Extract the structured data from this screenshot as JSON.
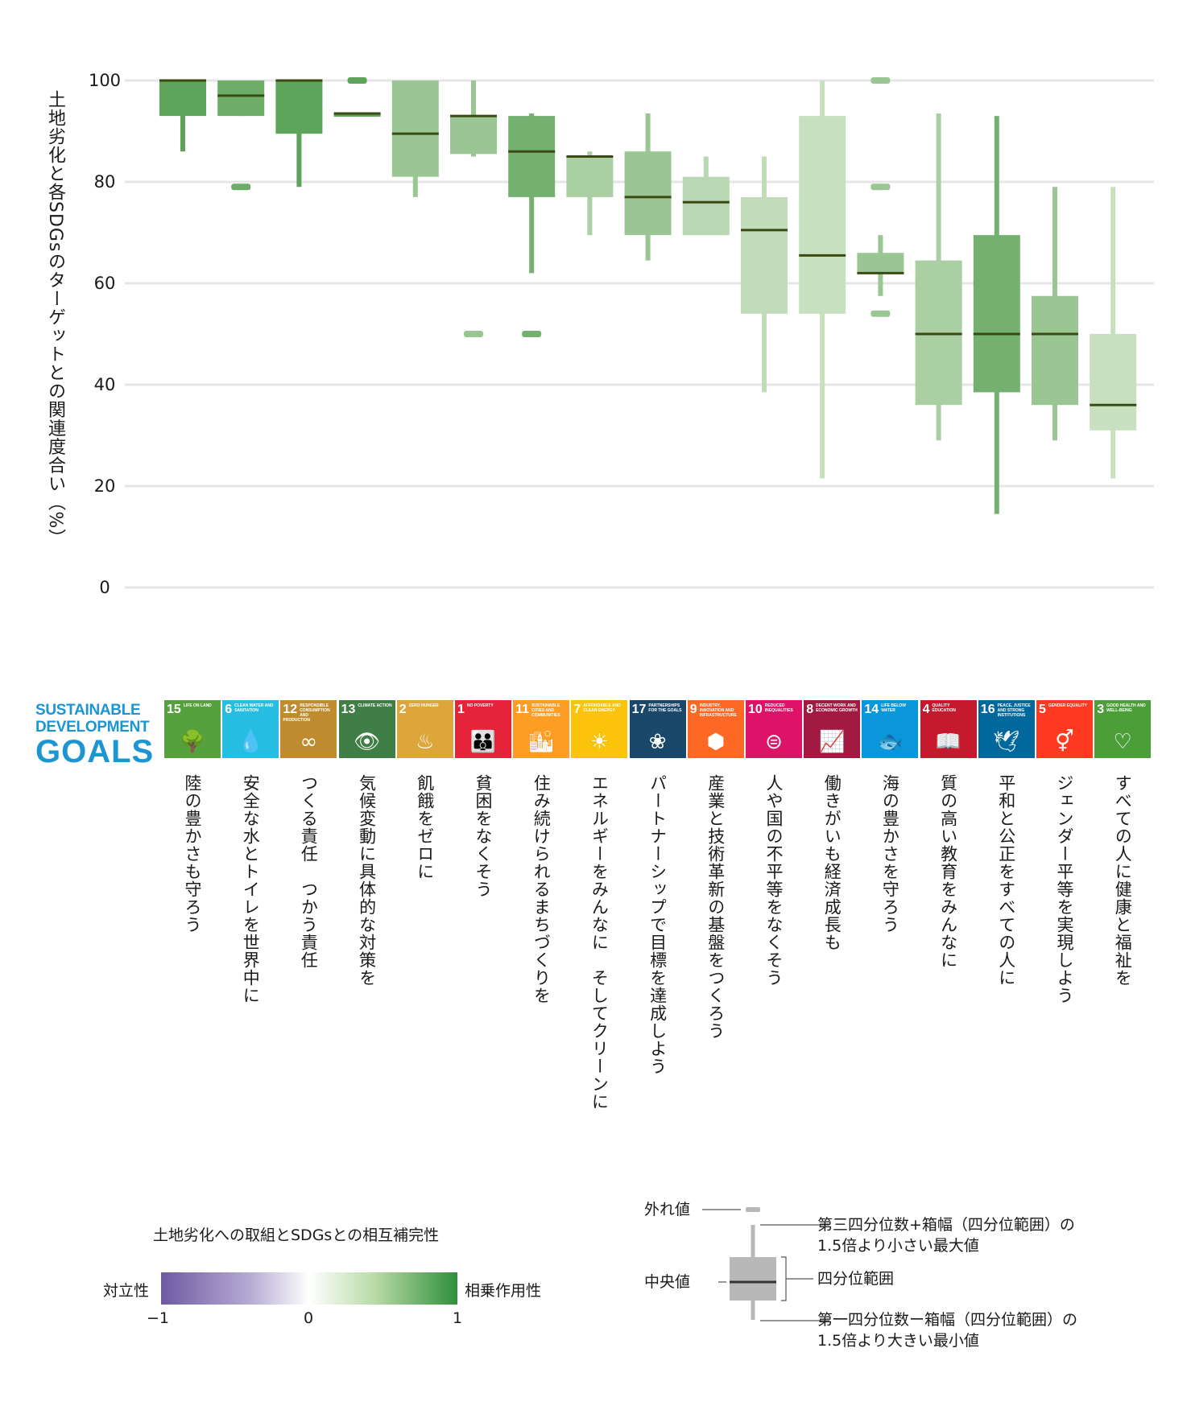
{
  "chart_data": {
    "type": "boxplot",
    "ylabel": "土地劣化と各SDGsのターゲットとの関連度合い（%）",
    "ylim": [
      0,
      100
    ],
    "yticks": [
      0,
      20,
      40,
      60,
      80,
      100
    ],
    "categories": [
      "15",
      "6",
      "12",
      "13",
      "2",
      "1",
      "11",
      "7",
      "17",
      "9",
      "10",
      "8",
      "14",
      "4",
      "16",
      "5",
      "3"
    ],
    "boxes": [
      {
        "goal": "15",
        "min": 86,
        "q1": 93,
        "median": 100,
        "q3": 100,
        "max": 100,
        "outliers": [],
        "synergy": 0.85
      },
      {
        "goal": "6",
        "min": 93,
        "q1": 93,
        "median": 97,
        "q3": 100,
        "max": 100,
        "outliers": [
          79
        ],
        "synergy": 0.75
      },
      {
        "goal": "12",
        "min": 79,
        "q1": 89.5,
        "median": 100,
        "q3": 100,
        "max": 100,
        "outliers": [],
        "synergy": 0.85
      },
      {
        "goal": "13",
        "min": 93,
        "q1": 93,
        "median": 93.5,
        "q3": 93.5,
        "max": 93.5,
        "outliers": [
          100
        ],
        "synergy": 0.85
      },
      {
        "goal": "2",
        "min": 77,
        "q1": 81,
        "median": 89.5,
        "q3": 100,
        "max": 100,
        "outliers": [],
        "synergy": 0.45
      },
      {
        "goal": "1",
        "min": 85,
        "q1": 85.5,
        "median": 93,
        "q3": 93,
        "max": 100,
        "outliers": [
          50
        ],
        "synergy": 0.45
      },
      {
        "goal": "11",
        "min": 62,
        "q1": 77,
        "median": 86,
        "q3": 93,
        "max": 93.5,
        "outliers": [
          50
        ],
        "synergy": 0.7
      },
      {
        "goal": "7",
        "min": 69.5,
        "q1": 77,
        "median": 85,
        "q3": 85,
        "max": 86,
        "outliers": [],
        "synergy": 0.35
      },
      {
        "goal": "17",
        "min": 64.5,
        "q1": 69.5,
        "median": 77,
        "q3": 86,
        "max": 93.5,
        "outliers": [],
        "synergy": 0.45
      },
      {
        "goal": "9",
        "min": 69.5,
        "q1": 69.5,
        "median": 76,
        "q3": 81,
        "max": 85,
        "outliers": [],
        "synergy": 0.25
      },
      {
        "goal": "10",
        "min": 38.5,
        "q1": 54,
        "median": 70.5,
        "q3": 77,
        "max": 85,
        "outliers": [],
        "synergy": 0.2
      },
      {
        "goal": "8",
        "min": 21.5,
        "q1": 54,
        "median": 65.5,
        "q3": 93,
        "max": 100,
        "outliers": [],
        "synergy": 0.15
      },
      {
        "goal": "14",
        "min": 57.5,
        "q1": 62,
        "median": 62,
        "q3": 66,
        "max": 69.5,
        "outliers": [
          100,
          79,
          54
        ],
        "synergy": 0.45
      },
      {
        "goal": "4",
        "min": 29,
        "q1": 36,
        "median": 50,
        "q3": 64.5,
        "max": 93.5,
        "outliers": [],
        "synergy": 0.35
      },
      {
        "goal": "16",
        "min": 14.5,
        "q1": 38.5,
        "median": 50,
        "q3": 69.5,
        "max": 93,
        "outliers": [],
        "synergy": 0.7
      },
      {
        "goal": "5",
        "min": 29,
        "q1": 36,
        "median": 50,
        "q3": 57.5,
        "max": 79,
        "outliers": [],
        "synergy": 0.45
      },
      {
        "goal": "3",
        "min": 21.5,
        "q1": 31,
        "median": 36,
        "q3": 50,
        "max": 79,
        "outliers": [],
        "synergy": 0.15
      }
    ]
  },
  "sdg_logo": {
    "line1": "SUSTAINABLE",
    "line2": "DEVELOPMENT",
    "line3": "GOALS"
  },
  "goals": [
    {
      "num": "15",
      "tile": "LIFE ON LAND",
      "color": "#56a13d",
      "icon": "🌳",
      "name": "陸の豊かさも守ろう"
    },
    {
      "num": "6",
      "tile": "CLEAN WATER AND SANITATION",
      "color": "#26bde2",
      "icon": "💧",
      "name": "安全な水とトイレを世界中に"
    },
    {
      "num": "12",
      "tile": "RESPONSIBLE CONSUMPTION AND PRODUCTION",
      "color": "#bf8b2e",
      "icon": "∞",
      "name": "つくる責任　つかう責任"
    },
    {
      "num": "13",
      "tile": "CLIMATE ACTION",
      "color": "#3f7e44",
      "icon": "👁",
      "name": "気候変動に具体的な対策を"
    },
    {
      "num": "2",
      "tile": "ZERO HUNGER",
      "color": "#dda63a",
      "icon": "♨",
      "name": "飢餓をゼロに"
    },
    {
      "num": "1",
      "tile": "NO POVERTY",
      "color": "#e5243b",
      "icon": "👪",
      "name": "貧困をなくそう"
    },
    {
      "num": "11",
      "tile": "SUSTAINABLE CITIES AND COMMUNITIES",
      "color": "#fd9d24",
      "icon": "🏙",
      "name": "住み続けられるまちづくりを"
    },
    {
      "num": "7",
      "tile": "AFFORDABLE AND CLEAN ENERGY",
      "color": "#fcc30b",
      "icon": "☀",
      "name": "エネルギーをみんなに　そしてクリーンに"
    },
    {
      "num": "17",
      "tile": "PARTNERSHIPS FOR THE GOALS",
      "color": "#19486a",
      "icon": "❀",
      "name": "パートナーシップで目標を達成しよう"
    },
    {
      "num": "9",
      "tile": "INDUSTRY, INNOVATION AND INFRASTRUCTURE",
      "color": "#fd6925",
      "icon": "⬢",
      "name": "産業と技術革新の基盤をつくろう"
    },
    {
      "num": "10",
      "tile": "REDUCED INEQUALITIES",
      "color": "#dd1367",
      "icon": "⊜",
      "name": "人や国の不平等をなくそう"
    },
    {
      "num": "8",
      "tile": "DECENT WORK AND ECONOMIC GROWTH",
      "color": "#a21942",
      "icon": "📈",
      "name": "働きがいも経済成長も"
    },
    {
      "num": "14",
      "tile": "LIFE BELOW WATER",
      "color": "#0a97d9",
      "icon": "🐟",
      "name": "海の豊かさを守ろう"
    },
    {
      "num": "4",
      "tile": "QUALITY EDUCATION",
      "color": "#c5192d",
      "icon": "📖",
      "name": "質の高い教育をみんなに"
    },
    {
      "num": "16",
      "tile": "PEACE, JUSTICE AND STRONG INSTITUTIONS",
      "color": "#00689d",
      "icon": "🕊",
      "name": "平和と公正をすべての人に"
    },
    {
      "num": "5",
      "tile": "GENDER EQUALITY",
      "color": "#ff3a21",
      "icon": "⚥",
      "name": "ジェンダー平等を実現しよう"
    },
    {
      "num": "3",
      "tile": "GOOD HEALTH AND WELL-BEING",
      "color": "#4c9f38",
      "icon": "♡",
      "name": "すべての人に健康と福祉を"
    }
  ],
  "legend": {
    "title": "土地劣化への取組とSDGsとの相互補完性",
    "left_label": "対立性",
    "right_label": "相乗作用性",
    "min": "−1",
    "mid": "0",
    "max": "1"
  },
  "boxplot_key": {
    "outlier": "外れ値",
    "median": "中央値",
    "upper_1": "第三四分位数+箱幅（四分位範囲）の",
    "upper_2": "1.5倍より小さい最大値",
    "iqr": "四分位範囲",
    "lower_1": "第一四分位数ー箱幅（四分位範囲）の",
    "lower_2": "1.5倍より大きい最小値"
  },
  "colors": {
    "grid": "#e6e6e6",
    "median": "#3b4a12",
    "key_box": "#b8b8b8",
    "key_median": "#333333"
  }
}
